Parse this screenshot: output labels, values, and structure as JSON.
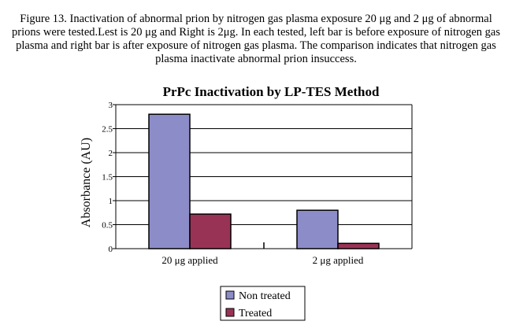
{
  "caption": "Figure 13. Inactivation of  abnormal prion by nitrogen gas plasma exposure 20 μg and 2 μg of abnormal prions were tested.Lest is 20 μg and Right is 2μg. In each tested, left bar is before exposure of  nitrogen gas plasma and right bar is after exposure of  nitrogen gas plasma. The comparison indicates that nitrogen gas plasma inactivate abnormal prion insuccess.",
  "chart_data": {
    "type": "bar",
    "title": "PrPc  Inactivation by LP-TES Method",
    "xlabel": "",
    "ylabel": "Absorbance (AU)",
    "categories": [
      "20 μg applied",
      "2 μg applied"
    ],
    "series": [
      {
        "name": "Non treated",
        "values": [
          2.8,
          0.8
        ],
        "color": "#8c8cc8"
      },
      {
        "name": "Treated",
        "values": [
          0.72,
          0.11
        ],
        "color": "#993355"
      }
    ],
    "ylim": [
      0,
      3
    ],
    "yticks": [
      "0",
      "0.5",
      "1",
      "1.5",
      "2",
      "2.5",
      "3"
    ],
    "ytick_values": [
      0,
      0.5,
      1,
      1.5,
      2,
      2.5,
      3
    ],
    "grid": true,
    "legend": "bottom"
  }
}
